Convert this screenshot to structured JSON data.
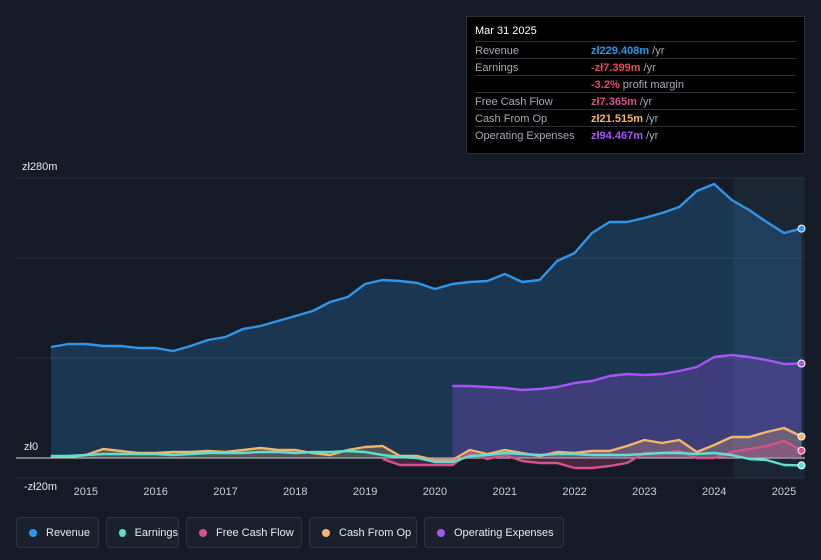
{
  "tooltip": {
    "date": "Mar 31 2025",
    "rows": [
      {
        "label": "Revenue",
        "value": "zł229.408m",
        "unit": "/yr",
        "color": "#2f95e8"
      },
      {
        "label": "Earnings",
        "value": "-zł7.399m",
        "unit": "/yr",
        "color": "#e74b5a"
      },
      {
        "label": "",
        "value": "-3.2%",
        "unit": "profit margin",
        "color": "#e74b5a"
      },
      {
        "label": "Free Cash Flow",
        "value": "zł7.365m",
        "unit": "/yr",
        "color": "#d9508a"
      },
      {
        "label": "Cash From Op",
        "value": "zł21.515m",
        "unit": "/yr",
        "color": "#f2b56b"
      },
      {
        "label": "Operating Expenses",
        "value": "zł94.467m",
        "unit": "/yr",
        "color": "#a855f7"
      }
    ]
  },
  "legend": [
    {
      "label": "Revenue",
      "color": "#2f95e8"
    },
    {
      "label": "Earnings",
      "color": "#5ee0d0"
    },
    {
      "label": "Free Cash Flow",
      "color": "#d9508a"
    },
    {
      "label": "Cash From Op",
      "color": "#f2b56b"
    },
    {
      "label": "Operating Expenses",
      "color": "#a855f7"
    }
  ],
  "chart_data": {
    "type": "area",
    "title": "",
    "xlabel": "",
    "ylabel": "",
    "ylim": [
      -20,
      280
    ],
    "y_tick_labels": [
      "zł280m",
      "zł0",
      "-zł20m"
    ],
    "x_tick_labels": [
      "2015",
      "2016",
      "2017",
      "2018",
      "2019",
      "2020",
      "2021",
      "2022",
      "2023",
      "2024",
      "2025"
    ],
    "x_ticks": [
      2015,
      2016,
      2017,
      2018,
      2019,
      2020,
      2021,
      2022,
      2023,
      2024,
      2025
    ],
    "xlim": [
      2014.0,
      2025.3
    ],
    "series": [
      {
        "name": "Revenue",
        "color": "#2f95e8",
        "fill": true,
        "x": [
          2014.5,
          2014.75,
          2015.0,
          2015.25,
          2015.5,
          2015.75,
          2016.0,
          2016.25,
          2016.5,
          2016.75,
          2017.0,
          2017.25,
          2017.5,
          2017.75,
          2018.0,
          2018.25,
          2018.5,
          2018.75,
          2019.0,
          2019.25,
          2019.5,
          2019.75,
          2020.0,
          2020.25,
          2020.5,
          2020.75,
          2021.0,
          2021.25,
          2021.5,
          2021.75,
          2022.0,
          2022.25,
          2022.5,
          2022.75,
          2023.0,
          2023.25,
          2023.5,
          2023.75,
          2024.0,
          2024.25,
          2024.5,
          2024.75,
          2025.0,
          2025.25
        ],
        "values": [
          111,
          114,
          114,
          112,
          112,
          110,
          110,
          107,
          112,
          118,
          121,
          129,
          132,
          137,
          142,
          147,
          156,
          161,
          174,
          178,
          177,
          175,
          169,
          174,
          176,
          177,
          184,
          176,
          178,
          197,
          205,
          225,
          236,
          236,
          240,
          245,
          251,
          267,
          274,
          258,
          248,
          236,
          225,
          229.4
        ]
      },
      {
        "name": "Operating Expenses",
        "color": "#a855f7",
        "fill": true,
        "x": [
          2020.25,
          2020.5,
          2020.75,
          2021.0,
          2021.25,
          2021.5,
          2021.75,
          2022.0,
          2022.25,
          2022.5,
          2022.75,
          2023.0,
          2023.25,
          2023.5,
          2023.75,
          2024.0,
          2024.25,
          2024.5,
          2024.75,
          2025.0,
          2025.25
        ],
        "values": [
          72,
          72,
          71,
          70,
          68,
          69,
          71,
          75,
          77,
          82,
          84,
          83,
          84,
          87,
          91,
          101,
          103,
          101,
          98,
          94,
          94.5
        ]
      },
      {
        "name": "Cash From Op",
        "color": "#f2b56b",
        "fill": true,
        "x": [
          2014.5,
          2014.75,
          2015.0,
          2015.25,
          2015.5,
          2015.75,
          2016.0,
          2016.25,
          2016.5,
          2016.75,
          2017.0,
          2017.25,
          2017.5,
          2017.75,
          2018.0,
          2018.25,
          2018.5,
          2018.75,
          2019.0,
          2019.25,
          2019.5,
          2019.75,
          2020.0,
          2020.25,
          2020.5,
          2020.75,
          2021.0,
          2021.25,
          2021.5,
          2021.75,
          2022.0,
          2022.25,
          2022.5,
          2022.75,
          2023.0,
          2023.25,
          2023.5,
          2023.75,
          2024.0,
          2024.25,
          2024.5,
          2024.75,
          2025.0,
          2025.25
        ],
        "values": [
          1,
          1,
          3,
          9,
          7,
          5,
          5,
          6,
          6,
          7,
          6,
          8,
          10,
          8,
          8,
          5,
          3,
          8,
          11,
          12,
          2,
          2,
          -2,
          -2,
          8,
          4,
          8,
          5,
          2,
          6,
          5,
          7,
          7,
          12,
          18,
          15,
          18,
          6,
          13,
          21,
          21,
          26,
          30,
          21.5
        ]
      },
      {
        "name": "Free Cash Flow",
        "color": "#d9508a",
        "fill": true,
        "x": [
          2019.25,
          2019.5,
          2019.75,
          2020.0,
          2020.25,
          2020.5,
          2020.75,
          2021.0,
          2021.25,
          2021.5,
          2021.75,
          2022.0,
          2022.25,
          2022.5,
          2022.75,
          2023.0,
          2023.25,
          2023.5,
          2023.75,
          2024.0,
          2024.25,
          2024.5,
          2024.75,
          2025.0,
          2025.25
        ],
        "values": [
          -1,
          -7,
          -7,
          -7,
          -7,
          5,
          -1,
          3,
          -3,
          -5,
          -5,
          -10,
          -10,
          -8,
          -5,
          5,
          5,
          7,
          0,
          0,
          6,
          9,
          12,
          17,
          7.4
        ]
      },
      {
        "name": "Earnings",
        "color": "#5ee0d0",
        "fill": false,
        "x": [
          2014.5,
          2014.75,
          2015.0,
          2015.25,
          2015.5,
          2015.75,
          2016.0,
          2016.25,
          2016.5,
          2016.75,
          2017.0,
          2017.25,
          2017.5,
          2017.75,
          2018.0,
          2018.25,
          2018.5,
          2018.75,
          2019.0,
          2019.25,
          2019.5,
          2019.75,
          2020.0,
          2020.25,
          2020.5,
          2020.75,
          2021.0,
          2021.25,
          2021.5,
          2021.75,
          2022.0,
          2022.25,
          2022.5,
          2022.75,
          2023.0,
          2023.25,
          2023.5,
          2023.75,
          2024.0,
          2024.25,
          2024.5,
          2024.75,
          2025.0,
          2025.25
        ],
        "values": [
          2,
          2,
          3,
          4,
          4,
          4,
          4,
          3,
          4,
          5,
          5,
          5,
          6,
          6,
          5,
          6,
          6,
          7,
          6,
          3,
          1,
          0,
          -4,
          -4,
          2,
          3,
          5,
          4,
          3,
          4,
          4,
          3,
          3,
          3,
          4,
          5,
          5,
          4,
          5,
          3,
          -1,
          -2,
          -7,
          -7.4
        ]
      }
    ],
    "grid": true,
    "legend_position": "bottom"
  }
}
